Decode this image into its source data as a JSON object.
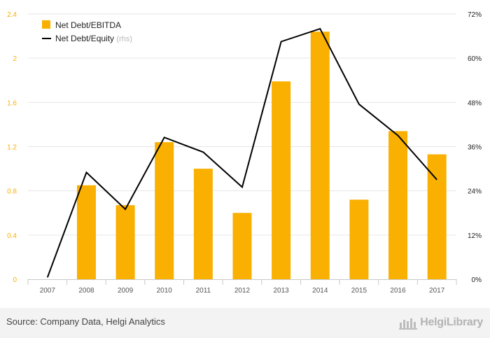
{
  "chart_data": {
    "type": "bar+line",
    "categories": [
      "2007",
      "2008",
      "2009",
      "2010",
      "2011",
      "2012",
      "2013",
      "2014",
      "2015",
      "2016",
      "2017"
    ],
    "series": [
      {
        "name": "Net Debt/EBITDA",
        "type": "bar",
        "axis": "left",
        "color": "#f9b000",
        "values": [
          0,
          0.85,
          0.67,
          1.24,
          1.0,
          0.6,
          1.79,
          2.24,
          0.72,
          1.34,
          1.13
        ]
      },
      {
        "name": "Net Debt/Equity",
        "name_suffix": "(rhs)",
        "type": "line",
        "axis": "right",
        "color": "#000000",
        "values": [
          0.5,
          29,
          19,
          38.5,
          34.5,
          25,
          64.5,
          68,
          47.5,
          39,
          27
        ]
      }
    ],
    "yaxis_left": {
      "min": 0,
      "max": 2.4,
      "ticks": [
        0,
        0.4,
        0.8,
        1.2,
        1.6,
        2,
        2.4
      ],
      "tick_labels": [
        "0",
        "0.4",
        "0.8",
        "1.2",
        "1.6",
        "2",
        "2.4"
      ]
    },
    "yaxis_right": {
      "min": 0,
      "max": 72,
      "ticks": [
        0,
        12,
        24,
        36,
        48,
        60,
        72
      ],
      "tick_labels": [
        "0%",
        "12%",
        "24%",
        "36%",
        "48%",
        "60%",
        "72%"
      ]
    },
    "grid": true,
    "legend_position": "top-left"
  },
  "footer": {
    "source": "Source: Company Data, Helgi Analytics",
    "brand": "HelgiLibrary"
  }
}
